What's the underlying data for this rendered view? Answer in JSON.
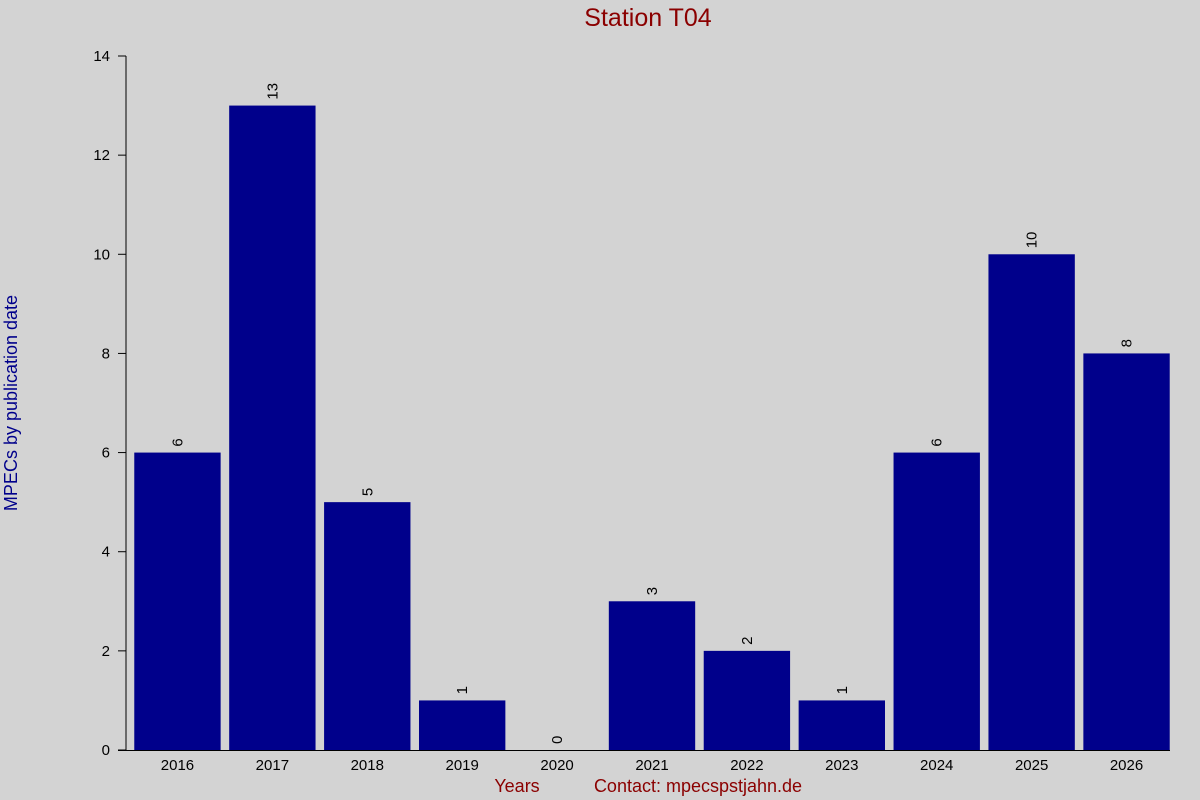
{
  "chart_data": {
    "type": "bar",
    "title": "Station T04",
    "x_label": "Years",
    "annotation": "Contact: mpecspstjahn.de",
    "y_label": "MPECs by publication date",
    "categories": [
      "2016",
      "2017",
      "2018",
      "2019",
      "2020",
      "2021",
      "2022",
      "2023",
      "2024",
      "2025",
      "2026"
    ],
    "values": [
      6,
      13,
      5,
      1,
      0,
      3,
      2,
      1,
      6,
      10,
      8
    ],
    "color": "#00008b",
    "ylim": [
      0,
      14
    ],
    "yticks": [
      0,
      2,
      4,
      6,
      8,
      10,
      12,
      14
    ],
    "grid": false
  }
}
